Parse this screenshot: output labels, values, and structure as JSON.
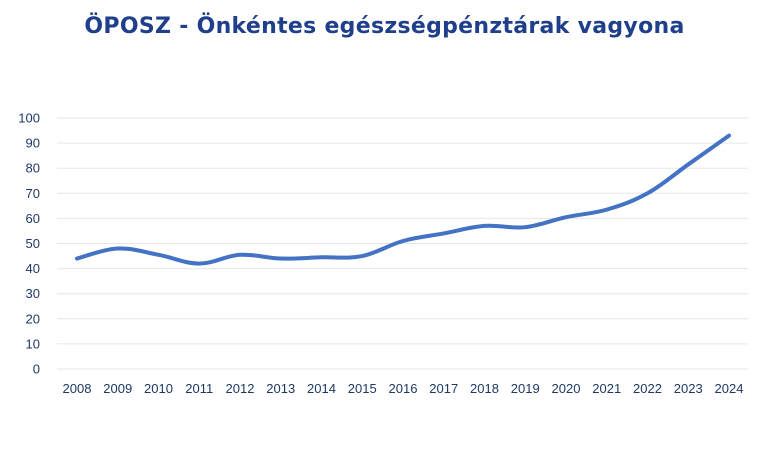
{
  "chart_data": {
    "type": "line",
    "title": "ÖPOSZ - Önkéntes egészségpénztárak vagyona",
    "xlabel": "",
    "ylabel": "",
    "categories": [
      "2008",
      "2009",
      "2010",
      "2011",
      "2012",
      "2013",
      "2014",
      "2015",
      "2016",
      "2017",
      "2018",
      "2019",
      "2020",
      "2021",
      "2022",
      "2023",
      "2024"
    ],
    "series": [
      {
        "values": [
          44,
          48,
          45.5,
          42,
          45.5,
          44,
          44.5,
          45,
          51,
          54,
          57,
          56.5,
          60.5,
          63.5,
          70,
          81.5,
          93
        ]
      }
    ],
    "ylim": [
      0,
      100
    ],
    "yticks": [
      0,
      10,
      20,
      30,
      40,
      50,
      60,
      70,
      80,
      90,
      100
    ],
    "grid": true,
    "legend": "none",
    "colors": {
      "line": "#4472c4",
      "title": "#1f3f8a",
      "tick_label": "#1f3864",
      "grid": "#e6e6e6"
    }
  }
}
